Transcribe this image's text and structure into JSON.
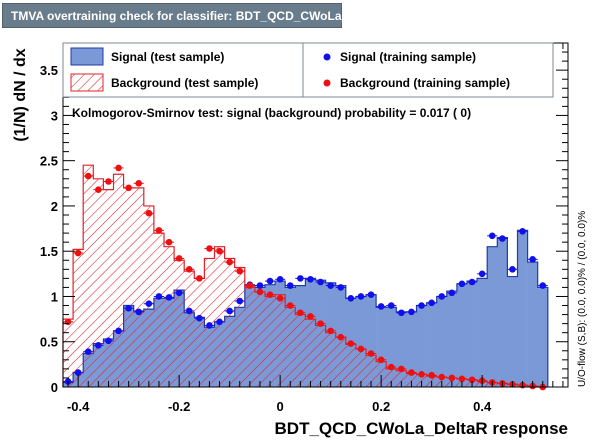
{
  "window": {
    "title": "TMVA overtraining check for classifier: BDT_QCD_CWoLa_DeltaR"
  },
  "chart_data": {
    "type": "bar",
    "xlabel": "BDT_QCD_CWoLa_DeltaR response",
    "ylabel": "(1/N) dN / dx",
    "xlim": [
      -0.43,
      0.57
    ],
    "ylim": [
      0,
      3.8
    ],
    "bin_width": 0.02,
    "x_ticks": [
      "-0.4",
      "-0.2",
      "0",
      "0.2",
      "0.4"
    ],
    "y_ticks": [
      "0",
      "0.5",
      "1",
      "1.5",
      "2",
      "2.5",
      "3",
      "3.5"
    ],
    "right_label": "U/O-flow (S,B): (0.0, 0.0)% / (0.0, 0.0)%",
    "ks_text": "Kolmogorov-Smirnov test: signal (background) probability = 0.017 (    0)",
    "legend": {
      "signal_test": "Signal (test sample)",
      "signal_train": "Signal (training sample)",
      "background_test": "Background (test sample)",
      "background_train": "Background (training sample)"
    },
    "colors": {
      "signal_fill": "#7b99d6",
      "signal_line": "#1f3da6",
      "background": "#e0232b",
      "signal_marker": "#1010ee",
      "background_marker": "#ee1010"
    },
    "series": [
      {
        "name": "Signal (test sample)",
        "values": [
          0.05,
          0.16,
          0.37,
          0.48,
          0.53,
          0.62,
          0.9,
          0.84,
          0.86,
          0.98,
          0.98,
          1.07,
          0.82,
          0.77,
          0.66,
          0.72,
          0.78,
          0.88,
          1.12,
          1.1,
          1.13,
          1.17,
          1.1,
          1.12,
          1.2,
          1.18,
          1.15,
          1.12,
          0.98,
          1.0,
          1.02,
          0.88,
          0.88,
          0.83,
          0.83,
          0.9,
          0.93,
          1.0,
          1.06,
          1.14,
          1.17,
          1.2,
          1.55,
          1.65,
          1.22,
          1.73,
          1.38,
          1.1
        ]
      },
      {
        "name": "Background (test sample)",
        "values": [
          0.75,
          1.52,
          2.45,
          2.3,
          2.18,
          2.35,
          2.2,
          2.2,
          2.0,
          1.7,
          1.55,
          1.4,
          1.28,
          1.2,
          1.42,
          1.55,
          1.42,
          1.32,
          1.1,
          1.05,
          1.0,
          1.02,
          0.88,
          0.8,
          0.75,
          0.68,
          0.6,
          0.55,
          0.47,
          0.42,
          0.35,
          0.28,
          0.2,
          0.18,
          0.15,
          0.14,
          0.12,
          0.11,
          0.1,
          0.09,
          0.08,
          0.06,
          0.05,
          0.04,
          0.03,
          0.02,
          0.01,
          0.0
        ]
      },
      {
        "name": "Signal (training sample)",
        "values": [
          0.06,
          0.16,
          0.39,
          0.46,
          0.51,
          0.62,
          0.87,
          0.83,
          0.92,
          1.0,
          0.99,
          1.04,
          0.84,
          0.76,
          0.68,
          0.72,
          0.84,
          0.95,
          1.13,
          1.12,
          1.17,
          1.19,
          1.12,
          1.2,
          1.19,
          1.16,
          1.12,
          1.1,
          0.98,
          1.0,
          1.02,
          0.89,
          0.9,
          0.82,
          0.83,
          0.9,
          0.93,
          1.0,
          1.04,
          1.14,
          1.16,
          1.25,
          1.67,
          1.64,
          1.3,
          1.72,
          1.41,
          1.12
        ]
      },
      {
        "name": "Background (training sample)",
        "values": [
          0.72,
          1.48,
          2.33,
          2.18,
          2.27,
          2.42,
          2.2,
          2.25,
          1.92,
          1.73,
          1.6,
          1.42,
          1.3,
          1.2,
          1.53,
          1.5,
          1.38,
          1.28,
          1.12,
          1.05,
          1.02,
          0.98,
          0.9,
          0.82,
          0.78,
          0.7,
          0.62,
          0.55,
          0.48,
          0.42,
          0.37,
          0.3,
          0.22,
          0.2,
          0.16,
          0.14,
          0.13,
          0.11,
          0.1,
          0.09,
          0.08,
          0.07,
          0.05,
          0.04,
          0.03,
          0.02,
          0.01,
          0.0
        ]
      }
    ]
  }
}
